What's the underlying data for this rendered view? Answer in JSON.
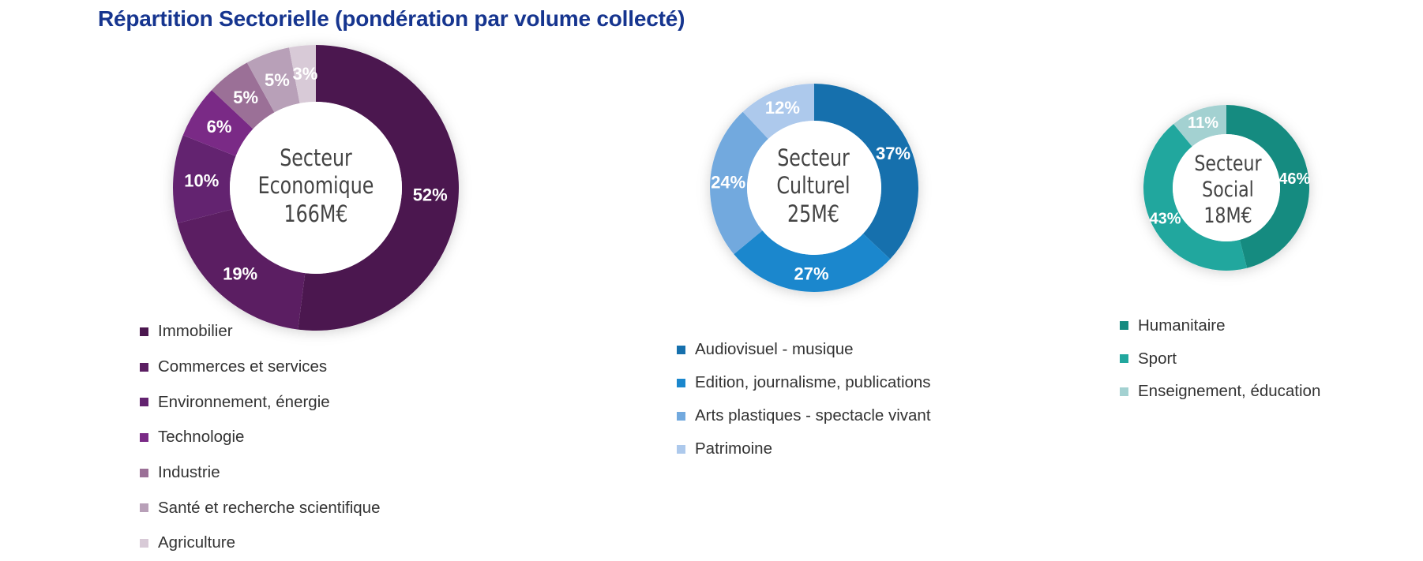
{
  "title": "Répartition Sectorielle (pondération par volume collecté)",
  "chart_data": [
    {
      "type": "pie",
      "center_label": [
        "Secteur",
        "Economique",
        "166M€"
      ],
      "slices": [
        {
          "label": "Immobilier",
          "value": 52,
          "display": "52%",
          "color": "#4b174f"
        },
        {
          "label": "Commerces et services",
          "value": 19,
          "display": "19%",
          "color": "#5b1e62"
        },
        {
          "label": "Environnement, énergie",
          "value": 10,
          "display": "10%",
          "color": "#632370"
        },
        {
          "label": "Technologie",
          "value": 6,
          "display": "6%",
          "color": "#7a2a86"
        },
        {
          "label": "Industrie",
          "value": 5,
          "display": "5%",
          "color": "#9b7097"
        },
        {
          "label": "Santé et recherche scientifique",
          "value": 5,
          "display": "5%",
          "color": "#b8a0b8"
        },
        {
          "label": "Agriculture",
          "value": 3,
          "display": "3%",
          "color": "#d8cad7"
        }
      ]
    },
    {
      "type": "pie",
      "center_label": [
        "Secteur",
        "Culturel",
        "25M€"
      ],
      "slices": [
        {
          "label": "Audiovisuel - musique",
          "value": 37,
          "display": "37%",
          "color": "#1670ad"
        },
        {
          "label": "Edition, journalisme, publications",
          "value": 27,
          "display": "27%",
          "color": "#1b87cd"
        },
        {
          "label": "Arts plastiques - spectacle vivant",
          "value": 24,
          "display": "24%",
          "color": "#72a9de"
        },
        {
          "label": "Patrimoine",
          "value": 12,
          "display": "12%",
          "color": "#adc9ec"
        }
      ]
    },
    {
      "type": "pie",
      "center_label": [
        "Secteur",
        "Social",
        "18M€"
      ],
      "slices": [
        {
          "label": "Humanitaire",
          "value": 46,
          "display": "46%",
          "color": "#158b80"
        },
        {
          "label": "Sport",
          "value": 43,
          "display": "43%",
          "color": "#21a79e"
        },
        {
          "label": "Enseignement, éducation",
          "value": 11,
          "display": "11%",
          "color": "#a3d1d1"
        }
      ]
    }
  ]
}
